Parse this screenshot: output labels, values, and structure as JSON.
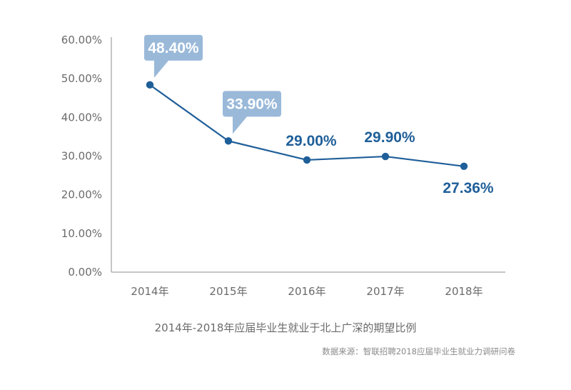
{
  "chart_data": {
    "type": "line",
    "title": "2014年-2018年应届毕业生就业于北上广深的期望比例",
    "source": "数据来源：智联招聘2018应届毕业生就业力调研问卷",
    "categories": [
      "2014年",
      "2015年",
      "2016年",
      "2017年",
      "2018年"
    ],
    "series": [
      {
        "values": [
          48.4,
          33.9,
          29.0,
          29.9,
          27.36
        ],
        "labels": [
          "48.40%",
          "33.90%",
          "29.00%",
          "29.90%",
          "27.36%"
        ],
        "callout": [
          true,
          true,
          false,
          false,
          false
        ],
        "label_side": [
          "above",
          "above",
          "above",
          "above",
          "below"
        ]
      }
    ],
    "y_ticks": [
      "0.00%",
      "10.00%",
      "20.00%",
      "30.00%",
      "40.00%",
      "50.00%",
      "60.00%"
    ],
    "ylim": [
      0,
      60
    ],
    "grid": false,
    "colors": {
      "line": "#1f5f99",
      "label_text": "#1f5f99",
      "callout_fill": "#9ab9d9",
      "callout_text": "#ffffff",
      "axis": "#8c8c8c"
    }
  }
}
